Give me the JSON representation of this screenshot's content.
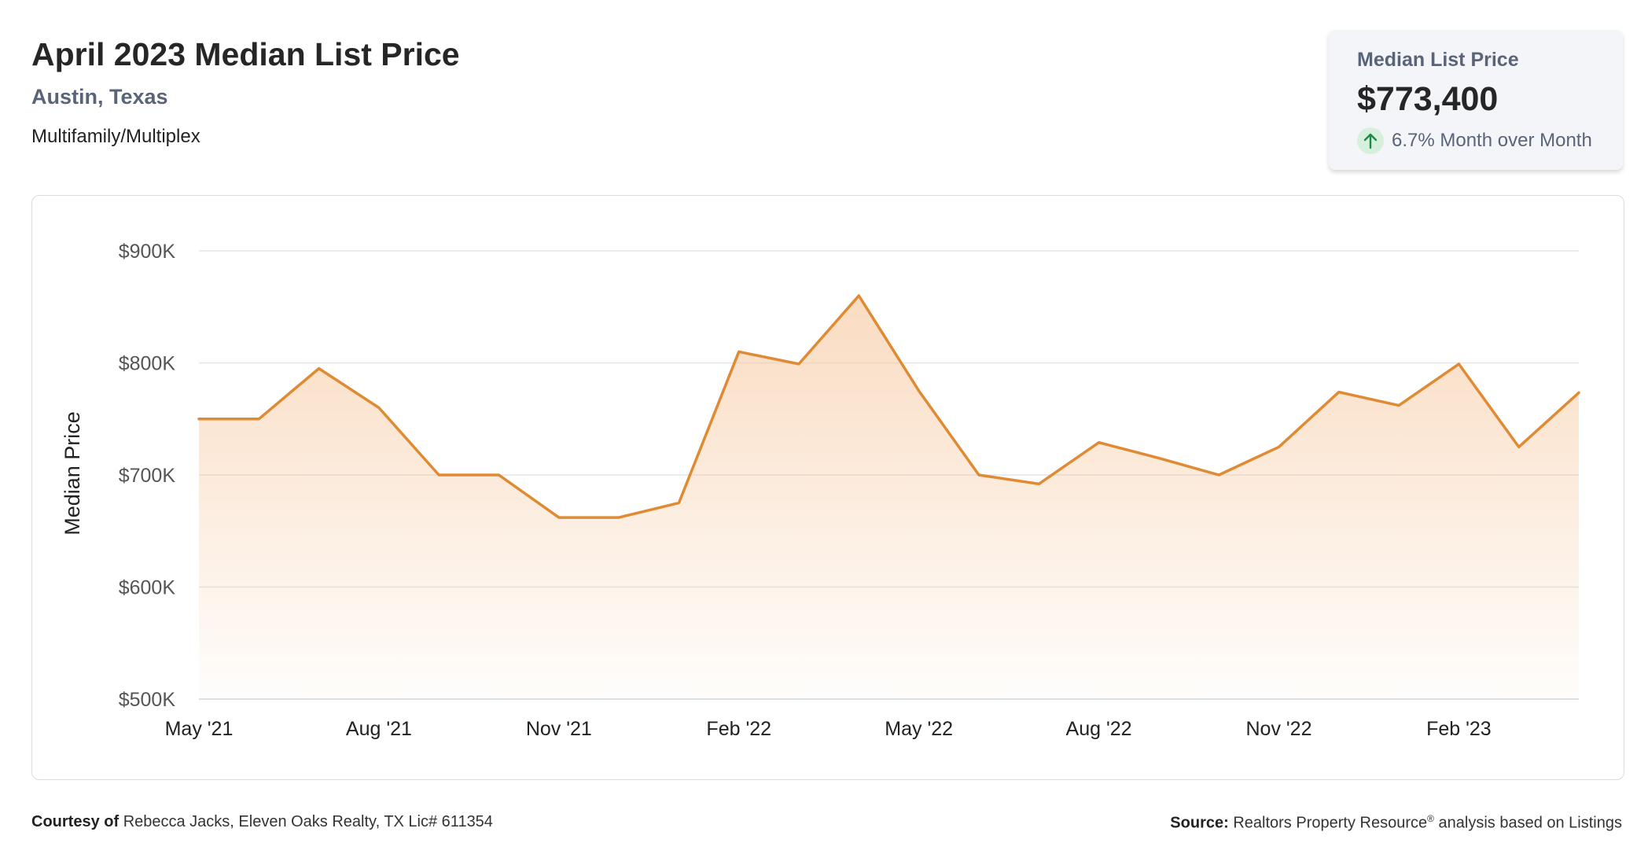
{
  "header": {
    "title": "April 2023 Median List Price",
    "location": "Austin, Texas",
    "property_type": "Multifamily/Multiplex"
  },
  "summary_card": {
    "label": "Median List Price",
    "value": "$773,400",
    "change": "6.7% Month over Month",
    "change_icon": "arrow-up-icon"
  },
  "chart_data": {
    "type": "area",
    "ylabel": "Median Price",
    "ylim": [
      500000,
      900000
    ],
    "yticks": [
      {
        "value": 500000,
        "label": "$500K"
      },
      {
        "value": 600000,
        "label": "$600K"
      },
      {
        "value": 700000,
        "label": "$700K"
      },
      {
        "value": 800000,
        "label": "$800K"
      },
      {
        "value": 900000,
        "label": "$900K"
      }
    ],
    "x": [
      "2021-05",
      "2021-06",
      "2021-07",
      "2021-08",
      "2021-09",
      "2021-10",
      "2021-11",
      "2021-12",
      "2022-01",
      "2022-02",
      "2022-03",
      "2022-04",
      "2022-05",
      "2022-06",
      "2022-07",
      "2022-08",
      "2022-09",
      "2022-10",
      "2022-11",
      "2022-12",
      "2023-01",
      "2023-02",
      "2023-03",
      "2023-04"
    ],
    "xticks": [
      {
        "x": "2021-05",
        "label": "May '21"
      },
      {
        "x": "2021-08",
        "label": "Aug '21"
      },
      {
        "x": "2021-11",
        "label": "Nov '21"
      },
      {
        "x": "2022-02",
        "label": "Feb '22"
      },
      {
        "x": "2022-05",
        "label": "May '22"
      },
      {
        "x": "2022-08",
        "label": "Aug '22"
      },
      {
        "x": "2022-11",
        "label": "Nov '22"
      },
      {
        "x": "2023-02",
        "label": "Feb '23"
      }
    ],
    "series": [
      {
        "values": [
          750000,
          750000,
          795000,
          760000,
          700000,
          700000,
          662000,
          662000,
          675000,
          810000,
          799000,
          860000,
          775000,
          700000,
          692000,
          729000,
          715000,
          700000,
          725000,
          774000,
          762000,
          799000,
          725000,
          773400
        ]
      }
    ],
    "grid": true,
    "line_color": "#e08a33",
    "fill_color": "#f7c9a0"
  },
  "footer": {
    "courtesy_label": "Courtesy of",
    "courtesy_text": "Rebecca Jacks, Eleven Oaks Realty, TX Lic# 611354",
    "source_label": "Source:",
    "source_text": "Realtors Property Resource",
    "source_mark": "®",
    "source_suffix": "analysis based on Listings"
  }
}
